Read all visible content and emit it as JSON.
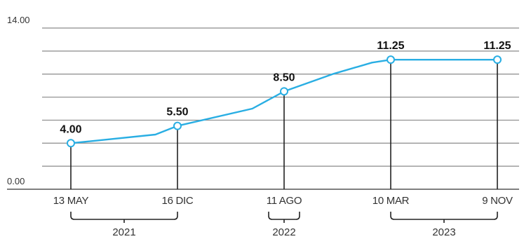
{
  "chart_data": {
    "type": "line",
    "y_ticks": [
      {
        "value": 14,
        "label": "14.00"
      },
      {
        "value": 0,
        "label": "0.00"
      }
    ],
    "ylim": [
      0,
      14
    ],
    "grid": true,
    "path": [
      {
        "date": "2021-05-13",
        "value": 4.0
      },
      {
        "date": "2021-11-01",
        "value": 4.75
      },
      {
        "date": "2021-12-16",
        "value": 5.5
      },
      {
        "date": "2022-06-01",
        "value": 7.0
      },
      {
        "date": "2022-08-11",
        "value": 8.5
      },
      {
        "date": "2022-11-15",
        "value": 10.0
      },
      {
        "date": "2023-02-01",
        "value": 11.0
      },
      {
        "date": "2023-03-10",
        "value": 11.25
      },
      {
        "date": "2023-11-09",
        "value": 11.25
      }
    ],
    "points": [
      {
        "date": "2021-05-13",
        "value": 4.0,
        "value_label": "4.00",
        "date_label": "13 MAY"
      },
      {
        "date": "2021-12-16",
        "value": 5.5,
        "value_label": "5.50",
        "date_label": "16 DIC"
      },
      {
        "date": "2022-08-11",
        "value": 8.5,
        "value_label": "8.50",
        "date_label": "11 AGO"
      },
      {
        "date": "2023-03-10",
        "value": 11.25,
        "value_label": "11.25",
        "date_label": "10 MAR"
      },
      {
        "date": "2023-11-09",
        "value": 11.25,
        "value_label": "11.25",
        "date_label": "9 NOV"
      }
    ],
    "year_groups": [
      {
        "label": "2021",
        "first_point": 0,
        "last_point": 1
      },
      {
        "label": "2022",
        "first_point": 2,
        "last_point": 2
      },
      {
        "label": "2023",
        "first_point": 3,
        "last_point": 4
      }
    ],
    "colors": {
      "line": "#29aee3",
      "marker_fill": "#ffffff",
      "gridline": "#8a8a8a",
      "axis": "#555555",
      "stem": "#222222",
      "bracket": "#222222"
    }
  }
}
